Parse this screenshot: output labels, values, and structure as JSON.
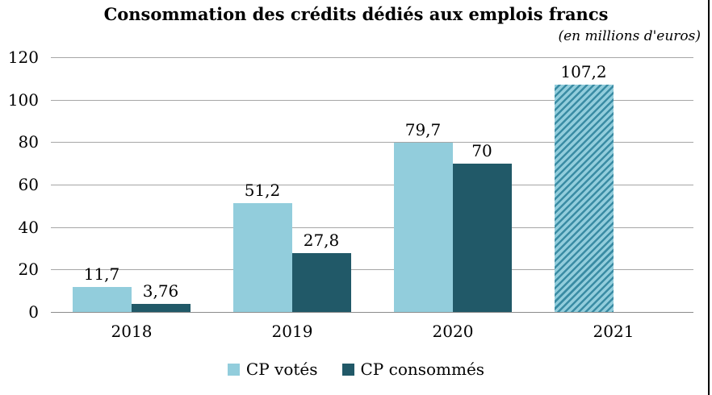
{
  "chart_data": {
    "type": "bar",
    "title": "Consommation des crédits dédiés aux emplois francs",
    "subtitle": "(en millions d'euros)",
    "categories": [
      "2018",
      "2019",
      "2020",
      "2021"
    ],
    "series": [
      {
        "name": "CP votés",
        "values": [
          11.7,
          51.2,
          79.7,
          107.2
        ],
        "labels": [
          "11,7",
          "51,2",
          "79,7",
          "107,2"
        ],
        "hatched": [
          false,
          false,
          false,
          true
        ]
      },
      {
        "name": "CP consommés",
        "values": [
          3.76,
          27.8,
          70,
          null
        ],
        "labels": [
          "3,76",
          "27,8",
          "70",
          null
        ],
        "hatched": [
          false,
          false,
          false,
          false
        ]
      }
    ],
    "ylim": [
      0,
      120
    ],
    "yticks": [
      0,
      20,
      40,
      60,
      80,
      100,
      120
    ],
    "legend": [
      "CP votés",
      "CP consommés"
    ],
    "legend_position": "bottom",
    "grid": true,
    "colors": {
      "cp_votes": "#92CDDC",
      "cp_consommes": "#215968",
      "hatch_stripe": "#3A8CA4",
      "gridline": "#A6A6A6",
      "axis_line": "#8C8C8C",
      "text": "#000000"
    }
  }
}
